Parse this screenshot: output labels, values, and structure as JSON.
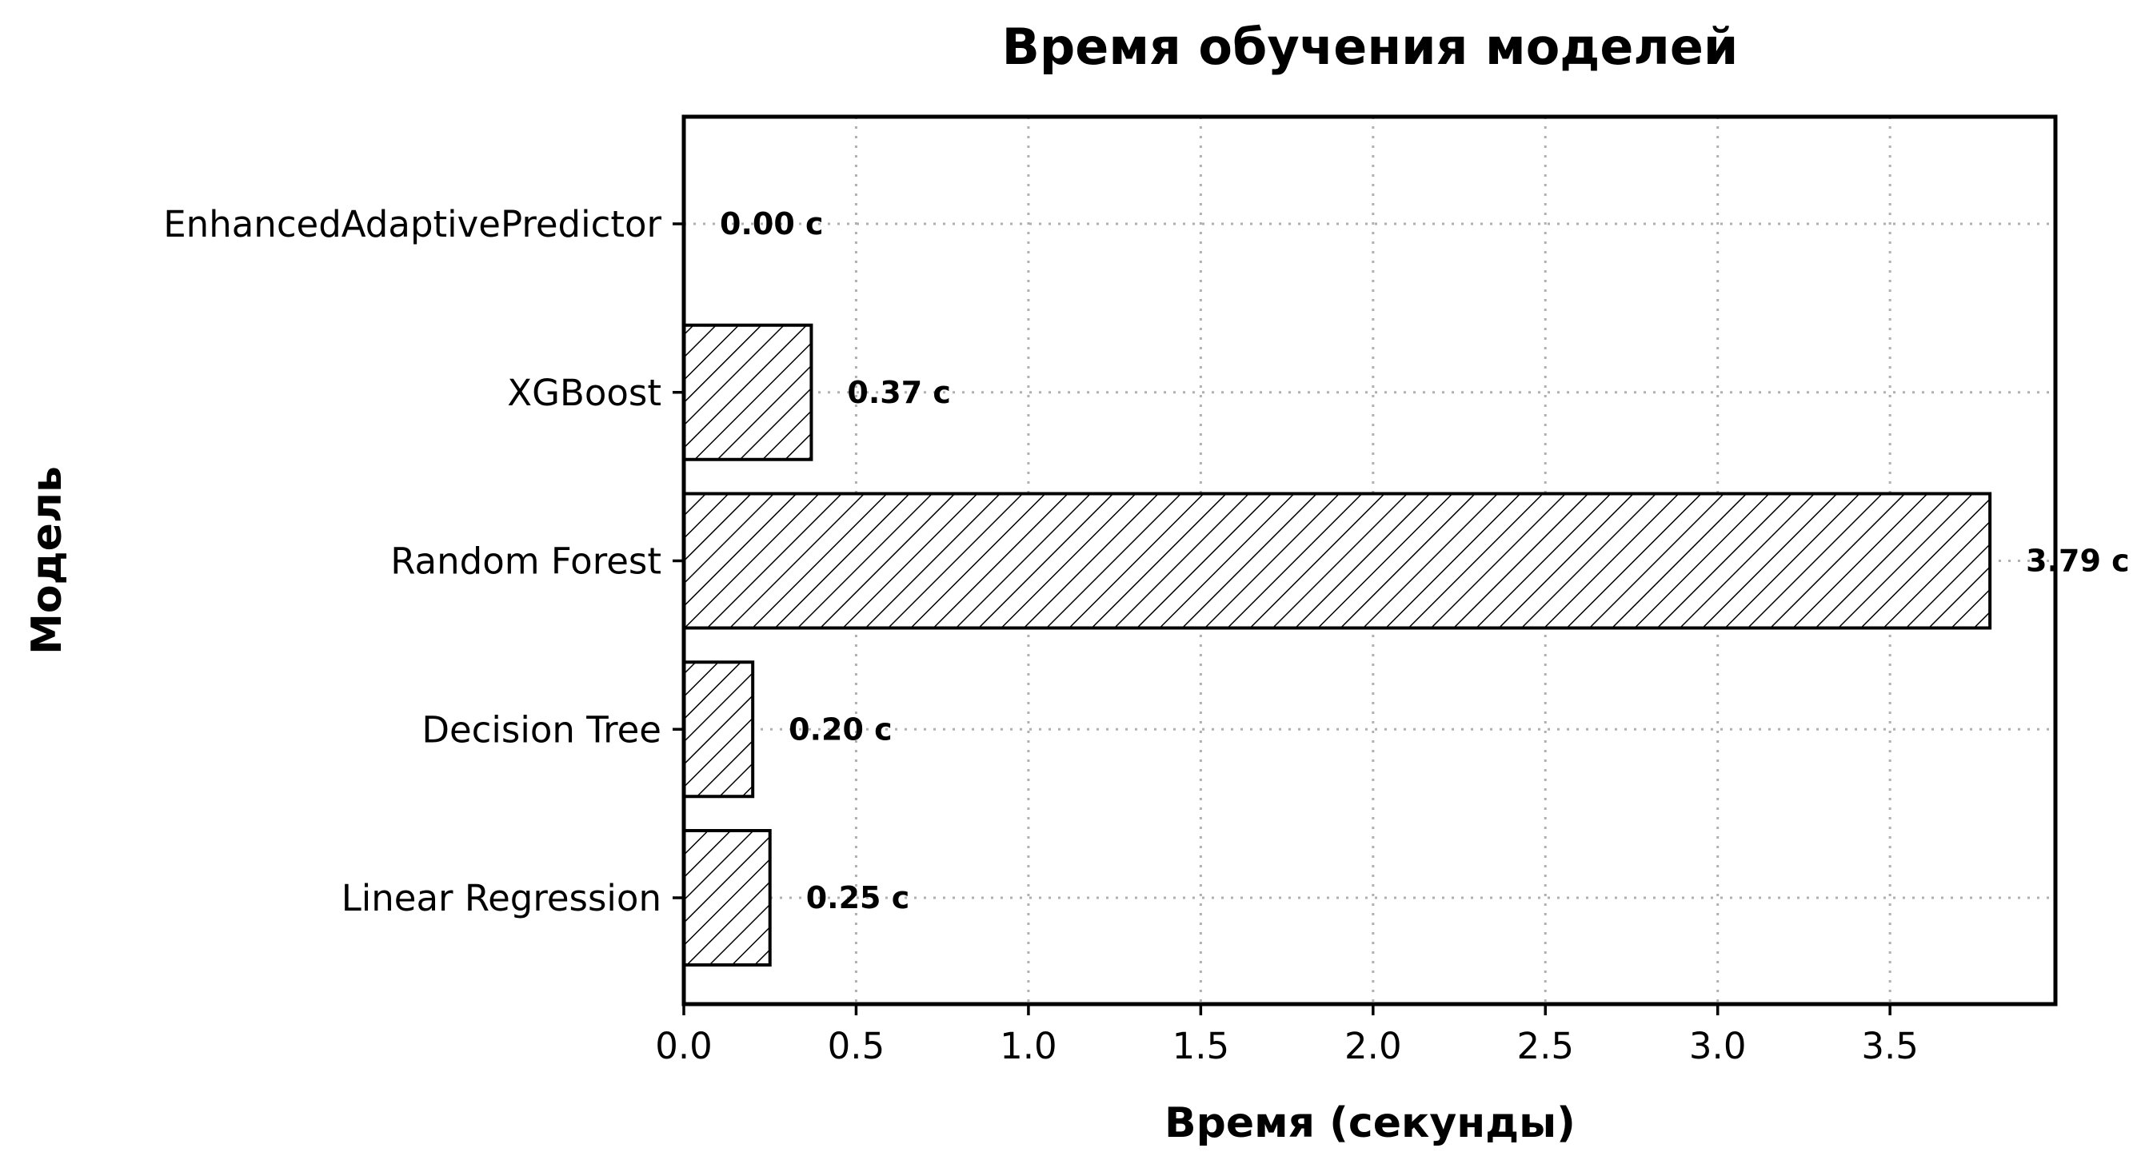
{
  "chart_data": {
    "type": "bar",
    "orientation": "horizontal",
    "title": "Время обучения моделей",
    "xlabel": "Время (секунды)",
    "ylabel": "Модель",
    "categories": [
      "Linear Regression",
      "Decision Tree",
      "Random Forest",
      "XGBoost",
      "EnhancedAdaptivePredictor"
    ],
    "values": [
      0.25,
      0.2,
      3.79,
      0.37,
      0.0
    ],
    "data_labels": [
      "0.25 с",
      "0.20 с",
      "3.79 с",
      "0.37 с",
      "0.00 с"
    ],
    "xlim": [
      0,
      3.98
    ],
    "xticks": [
      0.0,
      0.5,
      1.0,
      1.5,
      2.0,
      2.5,
      3.0,
      3.5
    ],
    "xtick_labels": [
      "0.0",
      "0.5",
      "1.0",
      "1.5",
      "2.0",
      "2.5",
      "3.0",
      "3.5"
    ],
    "grid": true,
    "bar_fill": "#ffffff",
    "bar_edge_color": "#000000",
    "bar_hatch": "diagonal",
    "grid_color": "#b0b0b0"
  }
}
